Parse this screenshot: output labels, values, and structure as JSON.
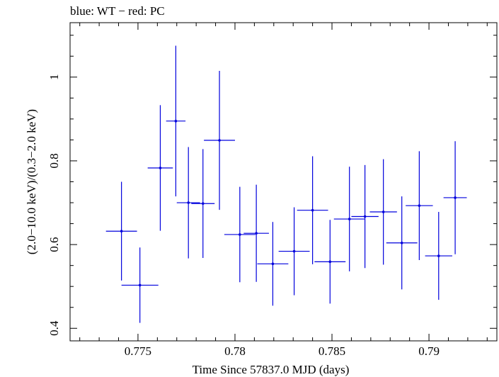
{
  "chart_data": {
    "type": "scatter",
    "title": "blue: WT − red: PC",
    "xlabel": "Time Since 57837.0 MJD (days)",
    "ylabel": "(2.0−10.0 keV)/(0.3−2.0 keV)",
    "xlim": [
      0.7715,
      0.7935
    ],
    "ylim": [
      0.37,
      1.13
    ],
    "xticks": [
      0.775,
      0.78,
      0.785,
      0.79
    ],
    "xtick_labels": [
      "0.775",
      "0.78",
      "0.785",
      "0.79"
    ],
    "yticks": [
      0.4,
      0.6,
      0.8,
      1.0
    ],
    "ytick_labels": [
      "0.4",
      "0.6",
      "0.8",
      "1"
    ],
    "grid": false,
    "series": [
      {
        "color": "#0000dd",
        "points": [
          {
            "x": 0.77415,
            "y": 0.632,
            "xerr": 0.0008,
            "yerr": 0.118
          },
          {
            "x": 0.7751,
            "y": 0.503,
            "xerr": 0.00095,
            "yerr": 0.09
          },
          {
            "x": 0.77615,
            "y": 0.783,
            "xerr": 0.00065,
            "yerr": 0.15
          },
          {
            "x": 0.77695,
            "y": 0.895,
            "xerr": 0.0005,
            "yerr": 0.18
          },
          {
            "x": 0.7776,
            "y": 0.7,
            "xerr": 0.0006,
            "yerr": 0.133
          },
          {
            "x": 0.77835,
            "y": 0.698,
            "xerr": 0.0006,
            "yerr": 0.13
          },
          {
            "x": 0.7792,
            "y": 0.849,
            "xerr": 0.0008,
            "yerr": 0.166
          },
          {
            "x": 0.78025,
            "y": 0.624,
            "xerr": 0.0008,
            "yerr": 0.114
          },
          {
            "x": 0.7811,
            "y": 0.627,
            "xerr": 0.00065,
            "yerr": 0.116
          },
          {
            "x": 0.78195,
            "y": 0.554,
            "xerr": 0.0008,
            "yerr": 0.1
          },
          {
            "x": 0.78305,
            "y": 0.584,
            "xerr": 0.0008,
            "yerr": 0.105
          },
          {
            "x": 0.784,
            "y": 0.682,
            "xerr": 0.0008,
            "yerr": 0.129
          },
          {
            "x": 0.7849,
            "y": 0.559,
            "xerr": 0.0008,
            "yerr": 0.1
          },
          {
            "x": 0.7859,
            "y": 0.661,
            "xerr": 0.0008,
            "yerr": 0.125
          },
          {
            "x": 0.7867,
            "y": 0.667,
            "xerr": 0.0007,
            "yerr": 0.123
          },
          {
            "x": 0.78765,
            "y": 0.678,
            "xerr": 0.0007,
            "yerr": 0.126
          },
          {
            "x": 0.7886,
            "y": 0.604,
            "xerr": 0.0008,
            "yerr": 0.111
          },
          {
            "x": 0.7895,
            "y": 0.693,
            "xerr": 0.0007,
            "yerr": 0.13
          },
          {
            "x": 0.7905,
            "y": 0.573,
            "xerr": 0.0007,
            "yerr": 0.105
          },
          {
            "x": 0.79135,
            "y": 0.712,
            "xerr": 0.0006,
            "yerr": 0.135
          }
        ]
      }
    ]
  }
}
